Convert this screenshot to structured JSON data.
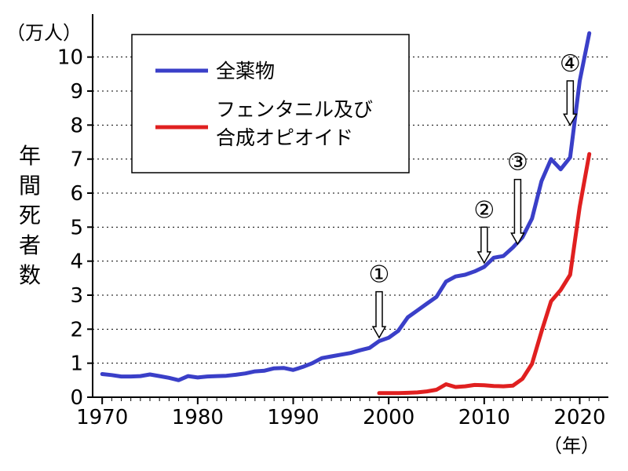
{
  "chart_data": {
    "type": "line",
    "title": "",
    "y_unit_label": "（万人）",
    "x_unit_label": "（年）",
    "ylabel": "年間死者数",
    "xlabel": "",
    "xlim": [
      1969,
      2023
    ],
    "ylim": [
      0,
      10.8
    ],
    "x_ticks": [
      1970,
      1980,
      1990,
      2000,
      2010,
      2020
    ],
    "y_ticks": [
      0,
      1,
      2,
      3,
      4,
      5,
      6,
      7,
      8,
      9,
      10
    ],
    "grid": "horizontal dotted",
    "legend_placement": "top-left",
    "series": [
      {
        "name": "全薬物",
        "color": "#3a3fc8",
        "x": [
          1970,
          1971,
          1972,
          1973,
          1974,
          1975,
          1976,
          1977,
          1978,
          1979,
          1980,
          1981,
          1982,
          1983,
          1984,
          1985,
          1986,
          1987,
          1988,
          1989,
          1990,
          1991,
          1992,
          1993,
          1994,
          1995,
          1996,
          1997,
          1998,
          1999,
          2000,
          2001,
          2002,
          2003,
          2004,
          2005,
          2006,
          2007,
          2008,
          2009,
          2010,
          2011,
          2012,
          2013,
          2014,
          2015,
          2016,
          2017,
          2018,
          2019,
          2020,
          2021
        ],
        "values": [
          0.68,
          0.65,
          0.61,
          0.61,
          0.62,
          0.67,
          0.62,
          0.57,
          0.5,
          0.62,
          0.58,
          0.61,
          0.62,
          0.63,
          0.66,
          0.7,
          0.76,
          0.78,
          0.85,
          0.86,
          0.8,
          0.89,
          1.0,
          1.15,
          1.2,
          1.25,
          1.3,
          1.38,
          1.45,
          1.65,
          1.75,
          1.95,
          2.35,
          2.55,
          2.75,
          2.95,
          3.4,
          3.55,
          3.6,
          3.7,
          3.83,
          4.1,
          4.15,
          4.4,
          4.7,
          5.25,
          6.35,
          7.0,
          6.7,
          7.05,
          9.3,
          10.7
        ]
      },
      {
        "name": "フェンタニル及び\n合成オピオイド",
        "color": "#e02020",
        "x": [
          1999,
          2000,
          2001,
          2002,
          2003,
          2004,
          2005,
          2006,
          2007,
          2008,
          2009,
          2010,
          2011,
          2012,
          2013,
          2014,
          2015,
          2016,
          2017,
          2018,
          2019,
          2020,
          2021
        ],
        "values": [
          0.12,
          0.12,
          0.12,
          0.13,
          0.14,
          0.17,
          0.22,
          0.38,
          0.3,
          0.32,
          0.36,
          0.35,
          0.33,
          0.32,
          0.34,
          0.54,
          0.98,
          1.93,
          2.82,
          3.15,
          3.6,
          5.6,
          7.15
        ]
      }
    ],
    "annotations": [
      {
        "label": "①",
        "x": 1999.0,
        "y_top": 3.1,
        "y_bottom": 1.75
      },
      {
        "label": "②",
        "x": 2010.0,
        "y_top": 5.0,
        "y_bottom": 3.95
      },
      {
        "label": "③",
        "x": 2013.5,
        "y_top": 6.4,
        "y_bottom": 4.5
      },
      {
        "label": "④",
        "x": 2019.0,
        "y_top": 9.3,
        "y_bottom": 8.0
      }
    ]
  }
}
